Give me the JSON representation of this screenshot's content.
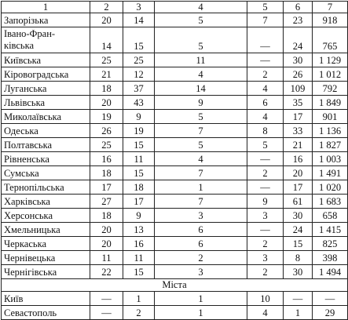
{
  "columns": [
    "1",
    "2",
    "3",
    "4",
    "5",
    "6",
    "7"
  ],
  "rows": [
    [
      "Запорізька",
      "20",
      "14",
      "5",
      "7",
      "23",
      "918"
    ],
    [
      "Івано-Фран-\nківська",
      "14",
      "15",
      "5",
      "—",
      "24",
      "765"
    ],
    [
      "Київська",
      "25",
      "25",
      "11",
      "—",
      "30",
      "1 129"
    ],
    [
      "Кіровоградська",
      "21",
      "12",
      "4",
      "2",
      "26",
      "1 012"
    ],
    [
      "Луганська",
      "18",
      "37",
      "14",
      "4",
      "109",
      "792"
    ],
    [
      "Львівська",
      "20",
      "43",
      "9",
      "6",
      "35",
      "1 849"
    ],
    [
      "Миколаївська",
      "19",
      "9",
      "5",
      "4",
      "17",
      "901"
    ],
    [
      "Одеська",
      "26",
      "19",
      "7",
      "8",
      "33",
      "1 136"
    ],
    [
      "Полтавська",
      "25",
      "15",
      "5",
      "5",
      "21",
      "1 827"
    ],
    [
      "Рівненська",
      "16",
      "11",
      "4",
      "—",
      "16",
      "1 003"
    ],
    [
      "Сумська",
      "18",
      "15",
      "7",
      "2",
      "20",
      "1 491"
    ],
    [
      "Тернопільська",
      "17",
      "18",
      "1",
      "—",
      "17",
      "1 020"
    ],
    [
      "Харківська",
      "27",
      "17",
      "7",
      "9",
      "61",
      "1 683"
    ],
    [
      "Херсонська",
      "18",
      "9",
      "3",
      "3",
      "30",
      "658"
    ],
    [
      "Хмельницька",
      "20",
      "13",
      "6",
      "—",
      "24",
      "1 415"
    ],
    [
      "Черкаська",
      "20",
      "16",
      "6",
      "2",
      "15",
      "825"
    ],
    [
      "Чернівецька",
      "11",
      "11",
      "2",
      "3",
      "8",
      "398"
    ],
    [
      "Чернігівська",
      "22",
      "15",
      "3",
      "2",
      "30",
      "1 494"
    ]
  ],
  "section_title": "Міста",
  "city_rows": [
    [
      "Київ",
      "—",
      "1",
      "1",
      "10",
      "—",
      "—"
    ],
    [
      "Севастополь",
      "—",
      "2",
      "1",
      "4",
      "1",
      "29"
    ]
  ]
}
